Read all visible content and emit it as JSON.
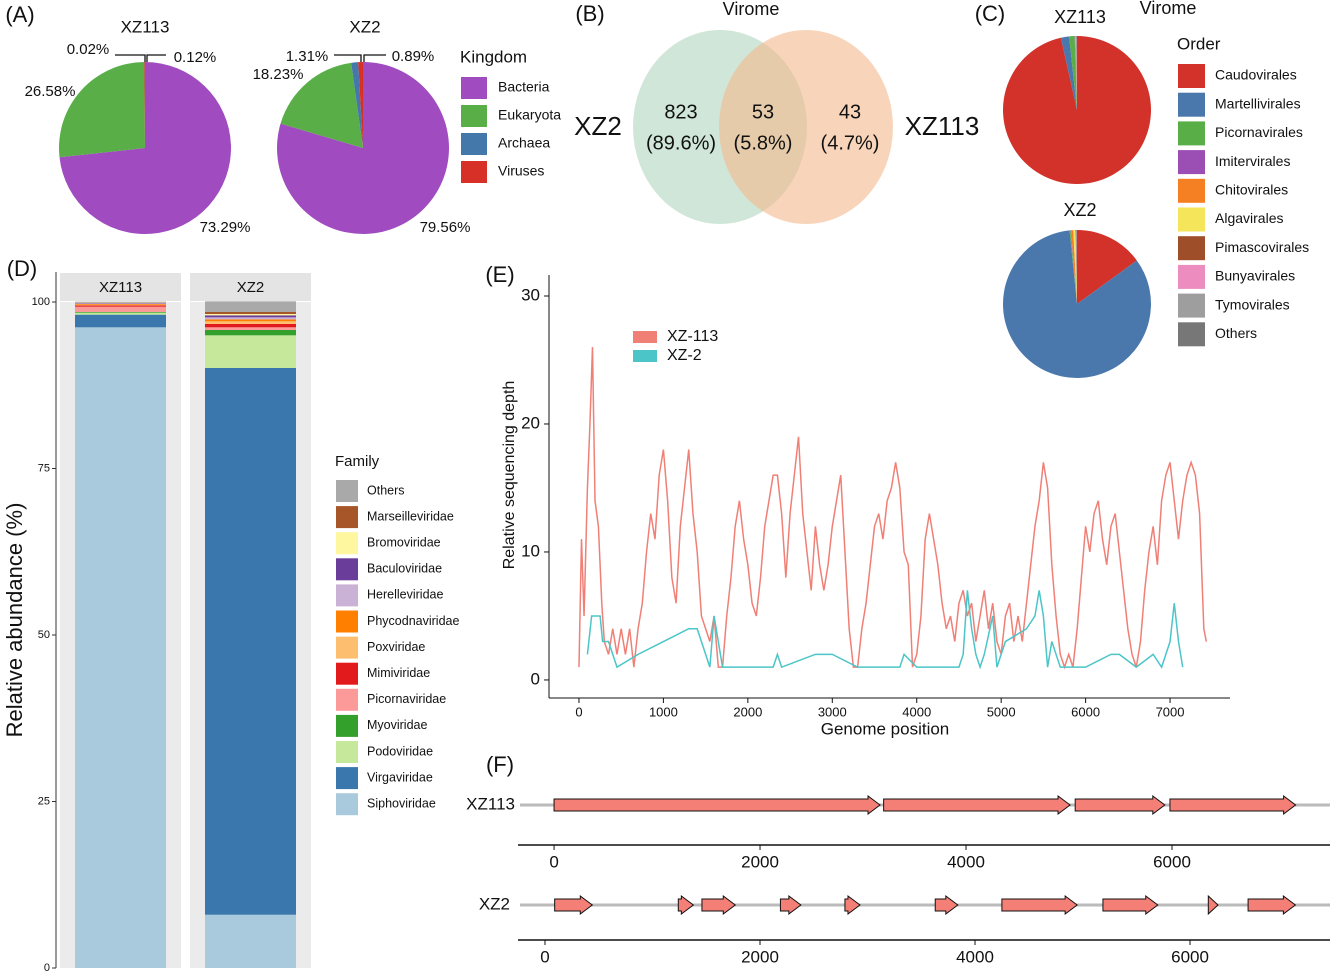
{
  "chart_data": [
    {
      "type": "pie",
      "label": "(A)",
      "legend_title": "Kingdom",
      "categories": [
        "Bacteria",
        "Eukaryota",
        "Archaea",
        "Viruses"
      ],
      "colors": [
        "#a04bbf",
        "#5aae48",
        "#4477aa",
        "#d73027"
      ],
      "pies": [
        {
          "title": "XZ113",
          "values": [
            73.29,
            26.58,
            0.02,
            0.12
          ],
          "value_labels": [
            "73.29%",
            "26.58%",
            "0.02%",
            "0.12%"
          ]
        },
        {
          "title": "XZ2",
          "values": [
            79.56,
            18.23,
            1.31,
            0.89
          ],
          "value_labels": [
            "79.56%",
            "18.23%",
            "1.31%",
            "0.89%"
          ]
        }
      ]
    },
    {
      "type": "venn",
      "label": "(B)",
      "title": "Virome",
      "sets": [
        "XZ2",
        "XZ113"
      ],
      "counts": [
        823,
        53,
        43
      ],
      "values": [
        89.6,
        5.8,
        4.7
      ],
      "value_labels": [
        "(89.6%)",
        "(5.8%)",
        "(4.7%)"
      ]
    },
    {
      "type": "pie",
      "label": "(C)",
      "title": "Virome",
      "legend_title": "Order",
      "categories": [
        "Caudovirales",
        "Martellivirales",
        "Picornavirales",
        "Imitervirales",
        "Chitovirales",
        "Algavirales",
        "Pimascovirales",
        "Bunyavirales",
        "Tymovirales",
        "Others"
      ],
      "colors": [
        "#d2322a",
        "#4a78ad",
        "#5aae48",
        "#9b4fb5",
        "#f58024",
        "#f5e55a",
        "#9e4f2a",
        "#ec8cbf",
        "#9e9e9e",
        "#777777"
      ],
      "pies": [
        {
          "title": "XZ113",
          "values": [
            96.5,
            1.8,
            1.2,
            0.1,
            0.1,
            0.05,
            0.05,
            0.05,
            0.05,
            0.1
          ]
        },
        {
          "title": "XZ2",
          "values": [
            15,
            83.5,
            0.2,
            0.1,
            0.5,
            0.5,
            0.1,
            0.05,
            0.05,
            0.1
          ]
        }
      ]
    },
    {
      "type": "stacked_bar",
      "label": "(D)",
      "ylabel": "Relative abundance (%)",
      "legend_title": "Family",
      "categories": [
        "XZ113",
        "XZ2"
      ],
      "ylim": [
        0,
        100
      ],
      "yticks": [
        0,
        25,
        50,
        75,
        100
      ],
      "series": [
        {
          "name": "Others",
          "color": "#a9a9a9",
          "values": [
            0.1,
            1.6
          ]
        },
        {
          "name": "Marseilleviridae",
          "color": "#a65628",
          "values": [
            0.05,
            0.3
          ]
        },
        {
          "name": "Bromoviridae",
          "color": "#fff7a0",
          "values": [
            0.05,
            0.2
          ]
        },
        {
          "name": "Baculoviridae",
          "color": "#6a3d9a",
          "values": [
            0.05,
            0.3
          ]
        },
        {
          "name": "Herelleviridae",
          "color": "#cab2d6",
          "values": [
            0.1,
            0.3
          ]
        },
        {
          "name": "Phycodnaviridae",
          "color": "#ff7f00",
          "values": [
            0.1,
            0.3
          ]
        },
        {
          "name": "Poxviridae",
          "color": "#fdbf6f",
          "values": [
            0.1,
            0.4
          ]
        },
        {
          "name": "Mimiviridae",
          "color": "#e31a1c",
          "values": [
            0.2,
            0.5
          ]
        },
        {
          "name": "Picornaviridae",
          "color": "#fb9a99",
          "values": [
            0.8,
            0.4
          ]
        },
        {
          "name": "Myoviridae",
          "color": "#33a02c",
          "values": [
            0.1,
            0.8
          ]
        },
        {
          "name": "Podoviridae",
          "color": "#c5e89a",
          "values": [
            0.3,
            4.9
          ]
        },
        {
          "name": "Virgaviridae",
          "color": "#3a77ad",
          "values": [
            1.9,
            82.1
          ]
        },
        {
          "name": "Siphoviridae",
          "color": "#a9c9dc",
          "values": [
            96.2,
            8.0
          ]
        }
      ]
    },
    {
      "type": "line",
      "label": "(E)",
      "xlabel": "Genome position",
      "ylabel": "Relative sequencing depth",
      "xlim": [
        -355,
        7710
      ],
      "ylim": [
        -1.41,
        31.64
      ],
      "xticks": [
        0,
        1000,
        2000,
        3000,
        4000,
        5000,
        6000,
        7000
      ],
      "yticks": [
        0,
        10,
        20,
        30
      ],
      "series": [
        {
          "name": "XZ-113",
          "color": "#f07f76",
          "x": [
            0,
            30,
            60,
            100,
            130,
            160,
            190,
            230,
            270,
            300,
            350,
            400,
            450,
            500,
            550,
            600,
            650,
            700,
            750,
            800,
            850,
            900,
            950,
            1000,
            1050,
            1100,
            1150,
            1200,
            1250,
            1300,
            1350,
            1400,
            1450,
            1500,
            1550,
            1600,
            1650,
            1700,
            1750,
            1800,
            1850,
            1900,
            1950,
            2000,
            2050,
            2100,
            2150,
            2200,
            2250,
            2300,
            2350,
            2400,
            2450,
            2500,
            2550,
            2600,
            2650,
            2700,
            2750,
            2800,
            2850,
            2900,
            2950,
            3000,
            3050,
            3100,
            3150,
            3200,
            3250,
            3300,
            3350,
            3400,
            3450,
            3500,
            3550,
            3600,
            3650,
            3700,
            3750,
            3800,
            3850,
            3900,
            3950,
            4000,
            4050,
            4100,
            4150,
            4200,
            4250,
            4300,
            4350,
            4400,
            4450,
            4500,
            4550,
            4600,
            4650,
            4700,
            4750,
            4800,
            4850,
            4900,
            4950,
            5000,
            5050,
            5100,
            5150,
            5200,
            5250,
            5300,
            5350,
            5400,
            5450,
            5500,
            5550,
            5600,
            5650,
            5700,
            5750,
            5800,
            5850,
            5900,
            5950,
            6000,
            6050,
            6100,
            6150,
            6200,
            6250,
            6300,
            6350,
            6400,
            6450,
            6500,
            6550,
            6600,
            6650,
            6700,
            6750,
            6800,
            6850,
            6900,
            6950,
            7000,
            7050,
            7100,
            7150,
            7200,
            7250,
            7300,
            7350,
            7400,
            7430
          ],
          "values": [
            1,
            11,
            5,
            15,
            20,
            26,
            14,
            12,
            6,
            3,
            2,
            4,
            2,
            4,
            2,
            4,
            1,
            4,
            6,
            10,
            13,
            11,
            16,
            18,
            14,
            8,
            6,
            12,
            15,
            18,
            13,
            10,
            5,
            4,
            3,
            5,
            1,
            1,
            5,
            8,
            12,
            14,
            11,
            9,
            6,
            5,
            8,
            12,
            14,
            16,
            16,
            13,
            8,
            13,
            16,
            19,
            13,
            10,
            7,
            12,
            9,
            7,
            9,
            12,
            14,
            16,
            10,
            4,
            1,
            1,
            4,
            6,
            9,
            12,
            13,
            11,
            14,
            15,
            17,
            15,
            10,
            9,
            1,
            2,
            5,
            11,
            13,
            11,
            9,
            6,
            4,
            5,
            3,
            6,
            7,
            5,
            6,
            3,
            5,
            7,
            4,
            6,
            3,
            2,
            5,
            6,
            3,
            5,
            3,
            6,
            9,
            12,
            14,
            17,
            15,
            9,
            5,
            2,
            1,
            2,
            1,
            4,
            8,
            12,
            10,
            13,
            14,
            11,
            9,
            12,
            13,
            10,
            7,
            4,
            2,
            1,
            3,
            7,
            10,
            12,
            9,
            14,
            16,
            17,
            14,
            11,
            14,
            16,
            17,
            16,
            13,
            4,
            3
          ]
        },
        {
          "name": "XZ-2",
          "color": "#4bc5c8",
          "x": [
            100,
            150,
            250,
            280,
            350,
            450,
            700,
            1000,
            1300,
            1400,
            1550,
            1600,
            1700,
            2300,
            2350,
            2400,
            2800,
            3000,
            3300,
            3800,
            3850,
            4000,
            4500,
            4550,
            4600,
            4650,
            4700,
            4750,
            4800,
            4900,
            4950,
            5050,
            5300,
            5400,
            5450,
            5500,
            5550,
            5600,
            5700,
            6000,
            6300,
            6400,
            6600,
            6800,
            6900,
            7000,
            7050,
            7100,
            7150
          ],
          "values": [
            2,
            5,
            5,
            3,
            3,
            1,
            2,
            3,
            4,
            4,
            1,
            5,
            1,
            1,
            2,
            1,
            2,
            2,
            1,
            1,
            2,
            1,
            1,
            2,
            7,
            4,
            2,
            1,
            2,
            5,
            1,
            3,
            4,
            5,
            7,
            5,
            1,
            3,
            1,
            1,
            2,
            2,
            1,
            2,
            1,
            3,
            6,
            3,
            1
          ]
        }
      ]
    },
    {
      "type": "gene_map",
      "label": "(F)",
      "tracks": [
        {
          "name": "XZ113",
          "color": "#f47f77",
          "xlim": [
            -350,
            7534
          ],
          "xticks": [
            0,
            2000,
            4000,
            6000
          ],
          "features": [
            [
              0,
              3165
            ],
            [
              3200,
              5010
            ],
            [
              5060,
              5930
            ],
            [
              5980,
              7200
            ]
          ]
        },
        {
          "name": "XZ2",
          "color": "#f47f77",
          "xlim": [
            -251,
            7302
          ],
          "xticks": [
            0,
            2000,
            4000,
            6000
          ],
          "features": [
            [
              90,
              440
            ],
            [
              1240,
              1380
            ],
            [
              1460,
              1770
            ],
            [
              2190,
              2380
            ],
            [
              2790,
              2930
            ],
            [
              3630,
              3840
            ],
            [
              4250,
              4950
            ],
            [
              5190,
              5700
            ],
            [
              6170,
              6260
            ],
            [
              6540,
              6980
            ]
          ]
        }
      ]
    }
  ]
}
